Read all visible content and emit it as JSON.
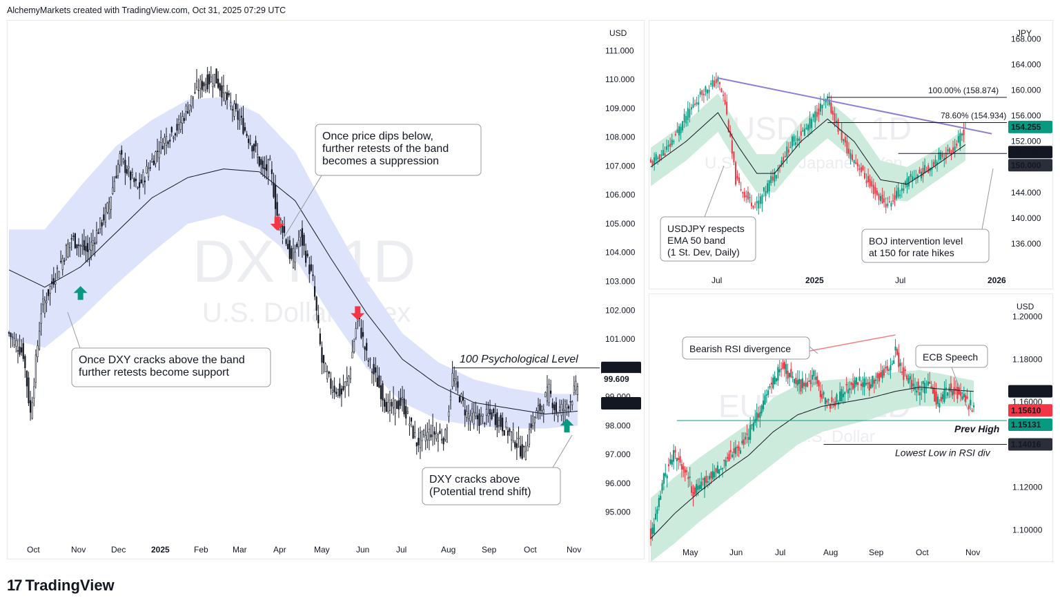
{
  "header": {
    "text": "AlchemyMarkets created with TradingView.com, Oct 31, 2025 07:29 UTC"
  },
  "footer": {
    "brand": "TradingView",
    "logo_mark": "17"
  },
  "colors": {
    "band_blue": "#dde3fb",
    "band_green": "#cdebdc",
    "up_green": "#089981",
    "down_red": "#f23645",
    "ema": "#131722",
    "trend_purple": "#8c7fd4",
    "rsi_red": "#f77c80"
  },
  "chart_data": [
    {
      "id": "dxy",
      "type": "candlestick",
      "currency": "USD",
      "watermark_symbol": "DXY, 1D",
      "watermark_name": "U.S. Dollar Index",
      "y_ticks": [
        95,
        96,
        97,
        98,
        99,
        100,
        101,
        102,
        103,
        104,
        105,
        106,
        107,
        108,
        109,
        110,
        111
      ],
      "y_tick_labels": [
        "95.000",
        "96.000",
        "97.000",
        "98.000",
        "99.000",
        "100.000",
        "101.000",
        "102.000",
        "103.000",
        "104.000",
        "105.000",
        "106.000",
        "107.000",
        "108.000",
        "109.000",
        "110.000",
        "111.000"
      ],
      "ylim": [
        94.2,
        111.8
      ],
      "x_labels": [
        "Oct",
        "Nov",
        "Dec",
        "2025",
        "Feb",
        "Mar",
        "Apr",
        "May",
        "Jun",
        "Jul",
        "Aug",
        "Sep",
        "Oct",
        "Nov"
      ],
      "price_path": [
        [
          0,
          101.2
        ],
        [
          8,
          100.5
        ],
        [
          12,
          98.4
        ],
        [
          18,
          102.0
        ],
        [
          25,
          103.1
        ],
        [
          35,
          104.5
        ],
        [
          44,
          104.0
        ],
        [
          55,
          105.5
        ],
        [
          62,
          107.3
        ],
        [
          72,
          106.2
        ],
        [
          85,
          107.8
        ],
        [
          95,
          108.4
        ],
        [
          105,
          109.7
        ],
        [
          115,
          110.1
        ],
        [
          122,
          109.3
        ],
        [
          130,
          108.5
        ],
        [
          138,
          107.5
        ],
        [
          142,
          106.8
        ],
        [
          146,
          107.0
        ],
        [
          150,
          105.3
        ],
        [
          153,
          104.9
        ],
        [
          158,
          103.7
        ],
        [
          163,
          104.6
        ],
        [
          170,
          103.0
        ],
        [
          175,
          100.2
        ],
        [
          180,
          99.4
        ],
        [
          186,
          99.1
        ],
        [
          190,
          99.7
        ],
        [
          195,
          101.8
        ],
        [
          200,
          100.4
        ],
        [
          206,
          99.5
        ],
        [
          212,
          98.6
        ],
        [
          220,
          98.8
        ],
        [
          228,
          97.4
        ],
        [
          236,
          97.8
        ],
        [
          244,
          97.6
        ],
        [
          248,
          99.7
        ],
        [
          256,
          98.4
        ],
        [
          264,
          98.2
        ],
        [
          270,
          98.4
        ],
        [
          276,
          98.0
        ],
        [
          282,
          97.6
        ],
        [
          288,
          97.0
        ],
        [
          292,
          98.1
        ],
        [
          298,
          98.7
        ],
        [
          302,
          99.2
        ],
        [
          306,
          98.5
        ],
        [
          310,
          98.6
        ],
        [
          314,
          98.9
        ],
        [
          318,
          99.4
        ]
      ],
      "ema50_path": [
        [
          0,
          103.4
        ],
        [
          20,
          102.8
        ],
        [
          40,
          103.5
        ],
        [
          60,
          104.7
        ],
        [
          80,
          105.9
        ],
        [
          100,
          106.6
        ],
        [
          120,
          106.9
        ],
        [
          140,
          106.8
        ],
        [
          160,
          105.8
        ],
        [
          180,
          103.8
        ],
        [
          200,
          101.9
        ],
        [
          220,
          100.3
        ],
        [
          240,
          99.4
        ],
        [
          260,
          98.8
        ],
        [
          280,
          98.6
        ],
        [
          300,
          98.4
        ],
        [
          318,
          98.5
        ]
      ],
      "band_upper": [
        [
          0,
          104.8
        ],
        [
          20,
          104.8
        ],
        [
          40,
          106.3
        ],
        [
          60,
          107.7
        ],
        [
          80,
          108.6
        ],
        [
          100,
          109.3
        ],
        [
          120,
          109.4
        ],
        [
          140,
          108.8
        ],
        [
          160,
          107.5
        ],
        [
          180,
          105.2
        ],
        [
          200,
          103.0
        ],
        [
          220,
          101.2
        ],
        [
          240,
          100.2
        ],
        [
          260,
          99.6
        ],
        [
          280,
          99.3
        ],
        [
          300,
          99.1
        ],
        [
          318,
          99.1
        ]
      ],
      "band_lower": [
        [
          0,
          101.0
        ],
        [
          20,
          100.7
        ],
        [
          40,
          101.7
        ],
        [
          60,
          102.9
        ],
        [
          80,
          104.0
        ],
        [
          100,
          105.0
        ],
        [
          120,
          105.3
        ],
        [
          140,
          104.8
        ],
        [
          160,
          103.8
        ],
        [
          180,
          101.8
        ],
        [
          200,
          100.0
        ],
        [
          220,
          98.8
        ],
        [
          240,
          98.2
        ],
        [
          260,
          98.0
        ],
        [
          280,
          97.9
        ],
        [
          300,
          97.9
        ],
        [
          318,
          98.0
        ]
      ],
      "horizontal_level": {
        "value": 100.0,
        "label": "100 Psychological Level",
        "tag": "100.000"
      },
      "price_tags": [
        {
          "value": 99.609,
          "text": "99.609"
        },
        {
          "value": 98.774,
          "text": "98.774"
        }
      ],
      "arrows": [
        {
          "dir": "up",
          "x": 40,
          "value": 102.6
        },
        {
          "dir": "down",
          "x": 150,
          "value": 105.0
        },
        {
          "dir": "down",
          "x": 195,
          "value": 101.9
        },
        {
          "dir": "up",
          "x": 312,
          "value": 98.0
        }
      ],
      "annotations": [
        {
          "lines": [
            "Once DXY cracks above the band",
            "further retests become support"
          ]
        },
        {
          "lines": [
            "Once price dips below,",
            "further retests of the band",
            "becomes a suppression"
          ]
        },
        {
          "lines": [
            "DXY cracks above",
            "(Potential trend shift)"
          ]
        }
      ]
    },
    {
      "id": "usdjpy",
      "type": "candlestick",
      "currency": "JPY",
      "watermark_symbol": "USDJPY, 1D",
      "watermark_name": "U.S. Dollar / Japanese Yen",
      "y_ticks": [
        136,
        140,
        144,
        148,
        152,
        156,
        160,
        164,
        168
      ],
      "y_tick_labels": [
        "136.000",
        "140.000",
        "144.000",
        "148.000",
        "152.000",
        "156.000",
        "160.000",
        "164.000",
        "168.000"
      ],
      "ylim": [
        132,
        170
      ],
      "x_labels": [
        "Jul",
        "2025",
        "Jul",
        "2026"
      ],
      "price_path": [
        [
          0,
          148.5
        ],
        [
          10,
          151
        ],
        [
          20,
          156
        ],
        [
          30,
          160
        ],
        [
          38,
          161.5
        ],
        [
          42,
          158
        ],
        [
          48,
          146
        ],
        [
          55,
          143
        ],
        [
          60,
          142
        ],
        [
          66,
          145
        ],
        [
          72,
          148
        ],
        [
          80,
          152
        ],
        [
          88,
          154
        ],
        [
          95,
          157
        ],
        [
          100,
          158.5
        ],
        [
          106,
          154
        ],
        [
          112,
          150
        ],
        [
          118,
          148
        ],
        [
          124,
          145
        ],
        [
          130,
          143
        ],
        [
          134,
          142
        ],
        [
          140,
          144
        ],
        [
          146,
          146
        ],
        [
          152,
          147
        ],
        [
          158,
          148
        ],
        [
          162,
          149.5
        ],
        [
          166,
          150
        ],
        [
          170,
          150.5
        ],
        [
          174,
          152
        ],
        [
          178,
          154.3
        ]
      ],
      "ema50_path": [
        [
          0,
          148
        ],
        [
          20,
          152
        ],
        [
          38,
          156.5
        ],
        [
          50,
          151
        ],
        [
          60,
          147
        ],
        [
          70,
          147
        ],
        [
          85,
          152
        ],
        [
          100,
          155.5
        ],
        [
          115,
          152
        ],
        [
          130,
          146
        ],
        [
          145,
          145.3
        ],
        [
          160,
          148
        ],
        [
          178,
          151.5
        ]
      ],
      "band_upper": [
        [
          0,
          151
        ],
        [
          20,
          155
        ],
        [
          38,
          159.5
        ],
        [
          50,
          154
        ],
        [
          60,
          150
        ],
        [
          70,
          150
        ],
        [
          85,
          155
        ],
        [
          100,
          158.5
        ],
        [
          115,
          155
        ],
        [
          130,
          149
        ],
        [
          145,
          148
        ],
        [
          160,
          150.5
        ],
        [
          178,
          154
        ]
      ],
      "band_lower": [
        [
          0,
          145
        ],
        [
          20,
          149
        ],
        [
          38,
          153.5
        ],
        [
          50,
          148
        ],
        [
          60,
          144
        ],
        [
          70,
          144
        ],
        [
          85,
          149
        ],
        [
          100,
          152.5
        ],
        [
          115,
          149
        ],
        [
          130,
          143
        ],
        [
          145,
          142.6
        ],
        [
          160,
          145.5
        ],
        [
          178,
          149
        ]
      ],
      "fib_levels": [
        {
          "value": 158.874,
          "label": "100.00% (158.874)"
        },
        {
          "value": 154.934,
          "label": "78.60% (154.934)"
        }
      ],
      "horizontal_level": {
        "value": 150.116
      },
      "price_tags": [
        {
          "value": 154.255,
          "text": "154.255"
        },
        {
          "value": 150.116,
          "text": "150.116"
        },
        {
          "value": 150.0,
          "text": "150.000"
        }
      ],
      "annotations": [
        {
          "lines": [
            "USDJPY respects",
            "EMA 50 band",
            "(1 St. Dev, Daily)"
          ]
        },
        {
          "lines": [
            "BOJ intervention level",
            "at 150 for rate hikes"
          ]
        }
      ]
    },
    {
      "id": "eurusd",
      "type": "candlestick",
      "currency": "USD",
      "watermark_symbol": "EURUSD, 1D",
      "watermark_name": "Euro / U.S. Dollar",
      "y_ticks": [
        1.1,
        1.12,
        1.14,
        1.16,
        1.18,
        1.2
      ],
      "y_tick_labels": [
        "1.10000",
        "1.12000",
        "1.14000",
        "1.16000",
        "1.18000",
        "1.20000"
      ],
      "ylim": [
        1.094,
        1.208
      ],
      "x_labels": [
        "May",
        "Jun",
        "Jul",
        "Aug",
        "Sep",
        "Oct",
        "Nov"
      ],
      "price_path": [
        [
          0,
          1.098
        ],
        [
          4,
          1.108
        ],
        [
          8,
          1.125
        ],
        [
          14,
          1.135
        ],
        [
          20,
          1.13
        ],
        [
          26,
          1.118
        ],
        [
          32,
          1.122
        ],
        [
          40,
          1.128
        ],
        [
          48,
          1.135
        ],
        [
          56,
          1.14
        ],
        [
          62,
          1.148
        ],
        [
          68,
          1.158
        ],
        [
          74,
          1.168
        ],
        [
          80,
          1.178
        ],
        [
          86,
          1.172
        ],
        [
          92,
          1.168
        ],
        [
          100,
          1.172
        ],
        [
          106,
          1.162
        ],
        [
          112,
          1.158
        ],
        [
          118,
          1.166
        ],
        [
          126,
          1.17
        ],
        [
          134,
          1.168
        ],
        [
          140,
          1.172
        ],
        [
          146,
          1.176
        ],
        [
          150,
          1.184
        ],
        [
          154,
          1.174
        ],
        [
          158,
          1.17
        ],
        [
          164,
          1.166
        ],
        [
          170,
          1.168
        ],
        [
          176,
          1.16
        ],
        [
          182,
          1.166
        ],
        [
          188,
          1.164
        ],
        [
          194,
          1.16
        ],
        [
          198,
          1.156
        ]
      ],
      "ema50_path": [
        [
          0,
          1.096
        ],
        [
          15,
          1.108
        ],
        [
          30,
          1.118
        ],
        [
          45,
          1.127
        ],
        [
          60,
          1.135
        ],
        [
          75,
          1.146
        ],
        [
          90,
          1.154
        ],
        [
          105,
          1.158
        ],
        [
          120,
          1.16
        ],
        [
          135,
          1.162
        ],
        [
          150,
          1.165
        ],
        [
          165,
          1.167
        ],
        [
          180,
          1.166
        ],
        [
          198,
          1.165
        ]
      ],
      "band_upper": [
        [
          0,
          1.115
        ],
        [
          15,
          1.125
        ],
        [
          30,
          1.134
        ],
        [
          45,
          1.142
        ],
        [
          60,
          1.15
        ],
        [
          75,
          1.162
        ],
        [
          90,
          1.168
        ],
        [
          105,
          1.17
        ],
        [
          120,
          1.171
        ],
        [
          135,
          1.172
        ],
        [
          150,
          1.174
        ],
        [
          165,
          1.175
        ],
        [
          180,
          1.173
        ],
        [
          198,
          1.17
        ]
      ],
      "band_lower": [
        [
          0,
          1.085
        ],
        [
          15,
          1.094
        ],
        [
          30,
          1.104
        ],
        [
          45,
          1.113
        ],
        [
          60,
          1.122
        ],
        [
          75,
          1.131
        ],
        [
          90,
          1.14
        ],
        [
          105,
          1.146
        ],
        [
          120,
          1.149
        ],
        [
          135,
          1.152
        ],
        [
          150,
          1.156
        ],
        [
          165,
          1.158
        ],
        [
          180,
          1.158
        ],
        [
          198,
          1.158
        ]
      ],
      "levels": [
        {
          "value": 1.15131,
          "label": "Prev High",
          "tag": "1.15131"
        },
        {
          "value": 1.14016,
          "label": "Lowest Low in RSI div",
          "tag": "1.14016"
        }
      ],
      "price_tags": [
        {
          "value": 1.16505,
          "text": "1.16505"
        },
        {
          "value": 1.1561,
          "text": "1.15610"
        }
      ],
      "annotations": [
        {
          "lines": [
            "Bearish RSI divergence"
          ]
        },
        {
          "lines": [
            "ECB Speech"
          ]
        }
      ]
    }
  ]
}
